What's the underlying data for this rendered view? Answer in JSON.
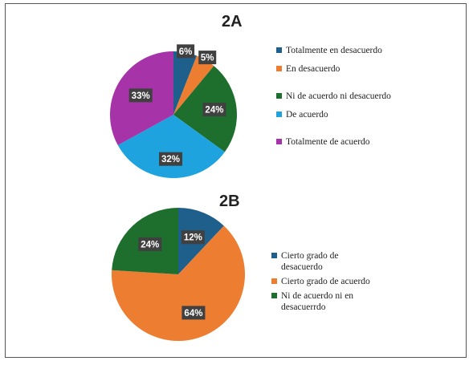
{
  "chart_data": [
    {
      "type": "pie",
      "title": "2A",
      "slices": [
        {
          "label": "Totalmente en desacuerdo",
          "value": 6,
          "display": "6%",
          "color": "#1f5f8b"
        },
        {
          "label": "En desacuerdo",
          "value": 5,
          "display": "5%",
          "color": "#ed7d31"
        },
        {
          "label": "Ni de acuerdo ni desacuerdo",
          "value": 24,
          "display": "24%",
          "color": "#1e6e2e"
        },
        {
          "label": "De acuerdo",
          "value": 32,
          "display": "32%",
          "color": "#1fa3de"
        },
        {
          "label": "Totalmente de acuerdo",
          "value": 33,
          "display": "33%",
          "color": "#a633a8"
        }
      ],
      "legend_position": "right"
    },
    {
      "type": "pie",
      "title": "2B",
      "slices": [
        {
          "label": "Cierto grado de desacuerdo",
          "value": 12,
          "display": "12%",
          "color": "#1f5f8b"
        },
        {
          "label": "Cierto grado de acuerdo",
          "value": 64,
          "display": "64%",
          "color": "#ed7d31"
        },
        {
          "label": "Ni de acuerdo ni en desacuerrdo",
          "value": 24,
          "display": "24%",
          "color": "#1e6e2e"
        }
      ],
      "legend_position": "right"
    }
  ]
}
